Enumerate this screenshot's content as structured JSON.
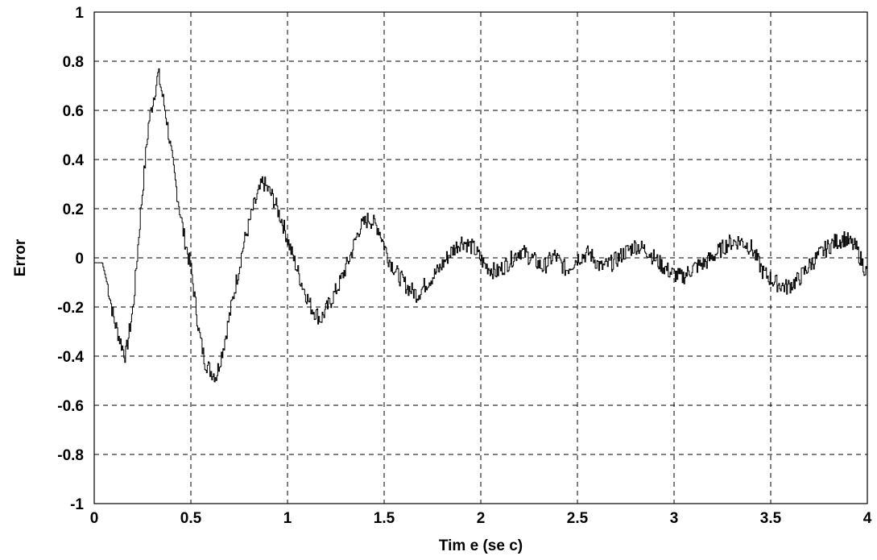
{
  "chart_data": {
    "type": "line",
    "title": "",
    "xlabel": "Tim e  (se c)",
    "ylabel": "Error",
    "xlim": [
      0,
      4
    ],
    "ylim": [
      -1,
      1
    ],
    "grid": true,
    "x_ticks": [
      0,
      0.5,
      1,
      1.5,
      2,
      2.5,
      3,
      3.5,
      4
    ],
    "x_tick_labels": [
      "0",
      "0.5",
      "1",
      "1.5",
      "2",
      "2.5",
      "3",
      "3.5",
      "4"
    ],
    "y_ticks": [
      -1,
      -0.8,
      -0.6,
      -0.4,
      -0.2,
      0,
      0.2,
      0.4,
      0.6,
      0.8,
      1
    ],
    "y_tick_labels": [
      "-1",
      "-0.8",
      "-0.6",
      "-0.4",
      "-0.2",
      "0",
      "0.2",
      "0.4",
      "0.6",
      "0.8",
      "1"
    ],
    "series": [
      {
        "x": [
          0,
          0.04,
          0.07,
          0.1,
          0.13,
          0.16,
          0.2,
          0.24,
          0.28,
          0.33,
          0.37,
          0.41,
          0.46,
          0.5,
          0.54,
          0.57,
          0.6,
          0.63,
          0.67,
          0.72,
          0.77,
          0.82,
          0.87,
          0.92,
          0.97,
          1.02,
          1.07,
          1.12,
          1.17,
          1.22,
          1.27,
          1.32,
          1.37,
          1.42,
          1.47,
          1.52,
          1.57,
          1.62,
          1.67,
          1.72,
          1.78,
          1.84,
          1.9,
          1.96,
          2.02,
          2.08,
          2.14,
          2.2,
          2.26,
          2.32,
          2.38,
          2.44,
          2.5,
          2.56,
          2.62,
          2.68,
          2.74,
          2.8,
          2.86,
          2.92,
          2.98,
          3.04,
          3.1,
          3.16,
          3.22,
          3.28,
          3.34,
          3.4,
          3.46,
          3.52,
          3.58,
          3.64,
          3.7,
          3.76,
          3.82,
          3.88,
          3.94,
          4.0
        ],
        "y": [
          -0.02,
          -0.02,
          -0.12,
          -0.25,
          -0.33,
          -0.4,
          -0.2,
          0.2,
          0.55,
          0.75,
          0.58,
          0.35,
          0.1,
          -0.05,
          -0.3,
          -0.42,
          -0.46,
          -0.48,
          -0.35,
          -0.15,
          0.05,
          0.2,
          0.31,
          0.25,
          0.15,
          0.02,
          -0.1,
          -0.2,
          -0.25,
          -0.18,
          -0.1,
          0.0,
          0.12,
          0.16,
          0.12,
          0.0,
          -0.07,
          -0.12,
          -0.15,
          -0.1,
          -0.05,
          0.02,
          0.07,
          0.04,
          -0.03,
          -0.06,
          -0.02,
          0.03,
          0.0,
          -0.04,
          0.01,
          -0.05,
          0.0,
          0.02,
          -0.04,
          -0.02,
          0.02,
          0.05,
          0.03,
          -0.02,
          -0.06,
          -0.08,
          -0.04,
          -0.02,
          0.02,
          0.06,
          0.07,
          0.04,
          -0.06,
          -0.1,
          -0.12,
          -0.09,
          -0.03,
          0.02,
          0.06,
          0.08,
          0.04,
          -0.07
        ]
      }
    ]
  }
}
